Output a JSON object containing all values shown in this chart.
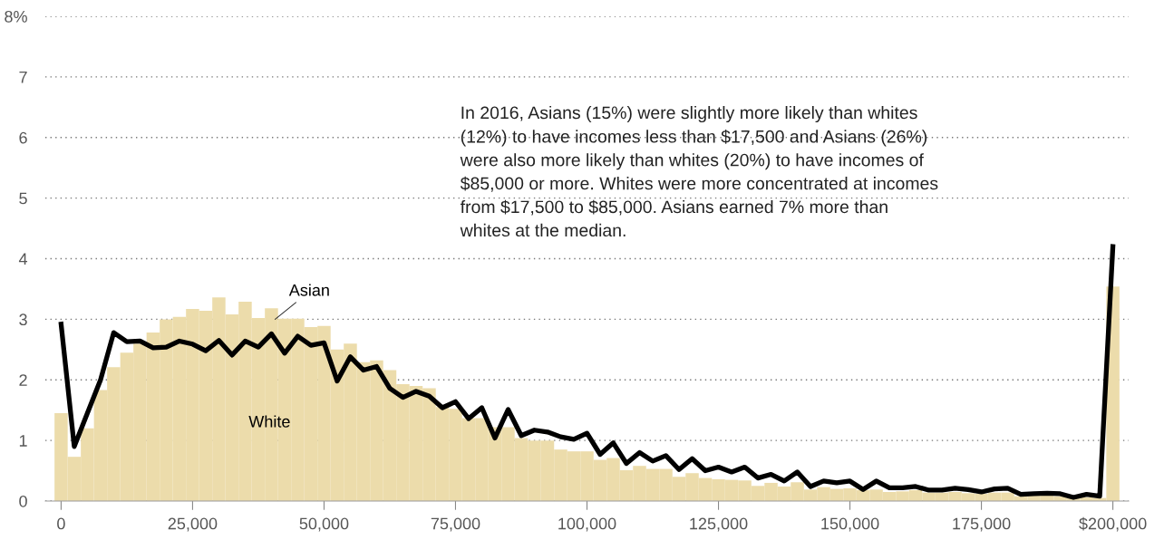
{
  "chart_data": {
    "type": "bar",
    "x": [
      0,
      2500,
      5000,
      7500,
      10000,
      12500,
      15000,
      17500,
      20000,
      22500,
      25000,
      27500,
      30000,
      32500,
      35000,
      37500,
      40000,
      42500,
      45000,
      47500,
      50000,
      52500,
      55000,
      57500,
      60000,
      62500,
      65000,
      67500,
      70000,
      72500,
      75000,
      77500,
      80000,
      82500,
      85000,
      87500,
      90000,
      92500,
      95000,
      97500,
      100000,
      102500,
      105000,
      107500,
      110000,
      112500,
      115000,
      117500,
      120000,
      122500,
      125000,
      127500,
      130000,
      132500,
      135000,
      137500,
      140000,
      142500,
      145000,
      147500,
      150000,
      152500,
      155000,
      157500,
      160000,
      162500,
      165000,
      167500,
      170000,
      172500,
      175000,
      177500,
      180000,
      182500,
      185000,
      187500,
      190000,
      192500,
      195000,
      197500,
      200000
    ],
    "series": [
      {
        "color": "#ecdcab",
        "values": [
          1.45,
          0.73,
          1.2,
          1.83,
          2.21,
          2.45,
          2.6,
          2.78,
          3.0,
          3.04,
          3.17,
          3.14,
          3.36,
          3.08,
          3.29,
          3.02,
          3.18,
          3.01,
          3.01,
          2.87,
          2.89,
          2.5,
          2.6,
          2.29,
          2.32,
          2.16,
          1.93,
          1.9,
          1.86,
          1.55,
          1.52,
          1.37,
          1.37,
          1.22,
          1.22,
          1.04,
          1.0,
          1.0,
          0.85,
          0.82,
          0.82,
          0.68,
          0.71,
          0.51,
          0.58,
          0.53,
          0.53,
          0.4,
          0.46,
          0.38,
          0.36,
          0.35,
          0.34,
          0.25,
          0.3,
          0.24,
          0.31,
          0.19,
          0.23,
          0.2,
          0.21,
          0.18,
          0.19,
          0.15,
          0.16,
          0.18,
          0.14,
          0.14,
          0.15,
          0.13,
          0.12,
          0.14,
          0.14,
          0.08,
          0.1,
          0.1,
          0.08,
          0.06,
          0.06,
          0.05,
          3.54
        ]
      },
      {
        "type": "line",
        "color": "#000000",
        "values": [
          2.92,
          0.9,
          1.45,
          2.0,
          2.78,
          2.63,
          2.64,
          2.53,
          2.54,
          2.64,
          2.59,
          2.48,
          2.65,
          2.41,
          2.64,
          2.54,
          2.76,
          2.44,
          2.72,
          2.57,
          2.61,
          1.98,
          2.38,
          2.16,
          2.22,
          1.86,
          1.71,
          1.81,
          1.73,
          1.54,
          1.64,
          1.36,
          1.54,
          1.04,
          1.51,
          1.08,
          1.17,
          1.14,
          1.06,
          1.02,
          1.12,
          0.77,
          0.96,
          0.62,
          0.8,
          0.66,
          0.75,
          0.52,
          0.7,
          0.5,
          0.56,
          0.48,
          0.56,
          0.38,
          0.44,
          0.33,
          0.48,
          0.24,
          0.33,
          0.3,
          0.33,
          0.19,
          0.33,
          0.22,
          0.22,
          0.24,
          0.18,
          0.18,
          0.21,
          0.19,
          0.15,
          0.2,
          0.21,
          0.11,
          0.12,
          0.13,
          0.12,
          0.06,
          0.11,
          0.08,
          4.2
        ]
      }
    ],
    "xlim": [
      -3000,
      203000
    ],
    "xticks": [
      {
        "value": 0,
        "label": "0"
      },
      {
        "value": 25000,
        "label": "25,000"
      },
      {
        "value": 50000,
        "label": "50,000"
      },
      {
        "value": 75000,
        "label": "75,000"
      },
      {
        "value": 100000,
        "label": "100,000"
      },
      {
        "value": 125000,
        "label": "125,000"
      },
      {
        "value": 150000,
        "label": "150,000"
      },
      {
        "value": 175000,
        "label": "175,000"
      },
      {
        "value": 200000,
        "label": "$200,000"
      }
    ],
    "ylim": [
      0,
      8
    ],
    "yticks": [
      0,
      1,
      2,
      3,
      4,
      5,
      6,
      7,
      {
        "value": 8,
        "label": "8%"
      }
    ],
    "grid": "y",
    "annotations": [
      {
        "text": "Asian",
        "x": 40700,
        "y": 3.0
      },
      "White",
      "In 2016, Asians (15%) were slightly more likely than whites\n(12%) to have incomes less than $17,500 and Asians (26%)\nwere also more likely than whites (20%) to have incomes of\n$85,000 or more. Whites were more concentrated at incomes\nfrom $17,500 to $85,000. Asians earned 7% more than\nwhites at the median."
    ]
  }
}
